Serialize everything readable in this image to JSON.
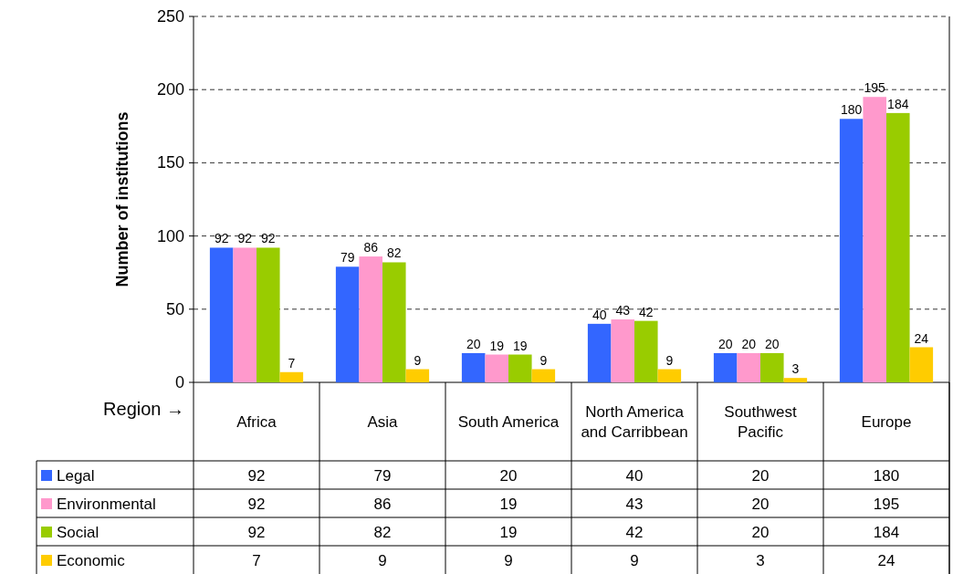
{
  "chart_data": {
    "type": "bar",
    "ylabel": "Number of institutions",
    "xlabel": "Region →",
    "categories": [
      "Africa",
      "Asia",
      "South America",
      "North America and Carribbean",
      "Southwest Pacific",
      "Europe"
    ],
    "series": [
      {
        "name": "Legal",
        "color": "#3366ff",
        "values": [
          92,
          79,
          20,
          40,
          20,
          180
        ],
        "value_labels": [
          "92",
          "79",
          "20",
          "40",
          "20",
          "180"
        ]
      },
      {
        "name": "Environmental",
        "color": "#ff99cc",
        "values": [
          92,
          86,
          19,
          43,
          20,
          195
        ],
        "value_labels": [
          "92",
          "86",
          "19",
          "43",
          "20",
          "195"
        ]
      },
      {
        "name": "Social",
        "color": "#99cc00",
        "values": [
          92,
          82,
          19,
          42,
          20,
          184
        ],
        "value_labels": [
          "92",
          "82",
          "19",
          "42",
          "20",
          "184"
        ]
      },
      {
        "name": "Economic",
        "color": "#ffcc00",
        "values": [
          7,
          9,
          9,
          9,
          3,
          24
        ],
        "value_labels": [
          "7",
          "9",
          "9",
          "9",
          "3",
          "24"
        ]
      }
    ],
    "ylim": [
      0,
      250
    ],
    "yticks": [
      0,
      50,
      100,
      150,
      200,
      250
    ],
    "grid": "y",
    "legend": "bottom"
  }
}
